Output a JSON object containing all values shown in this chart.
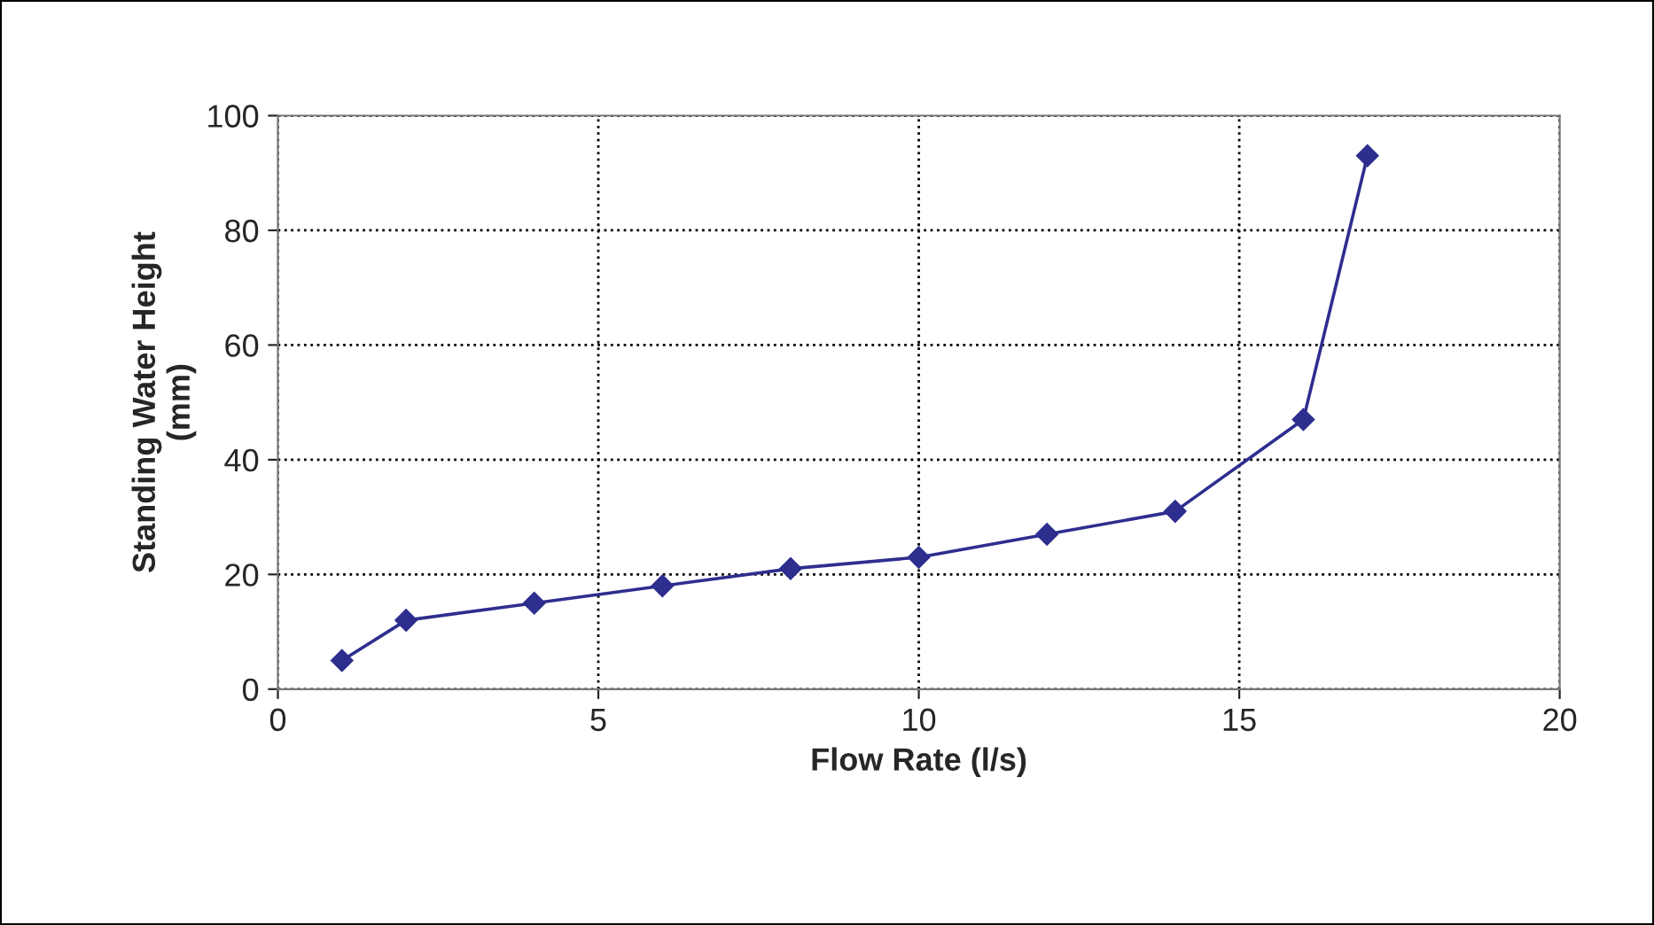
{
  "chart_data": {
    "type": "line",
    "xlabel": "Flow Rate (l/s)",
    "ylabel": "Standing Water Height\n(mm)",
    "x": [
      1,
      2,
      4,
      6,
      8,
      10,
      12,
      14,
      16,
      17
    ],
    "series": [
      {
        "color": "#2e2e8f",
        "values": [
          5,
          12,
          15,
          18,
          21,
          23,
          27,
          31,
          47,
          93
        ]
      }
    ],
    "xlim": [
      0,
      20
    ],
    "xticks": [
      0,
      5,
      10,
      15,
      20
    ],
    "ylim": [
      0,
      100
    ],
    "yticks": [
      0,
      20,
      40,
      60,
      80,
      100
    ],
    "grid": true,
    "marker": "diamond",
    "line_style": "solid"
  }
}
